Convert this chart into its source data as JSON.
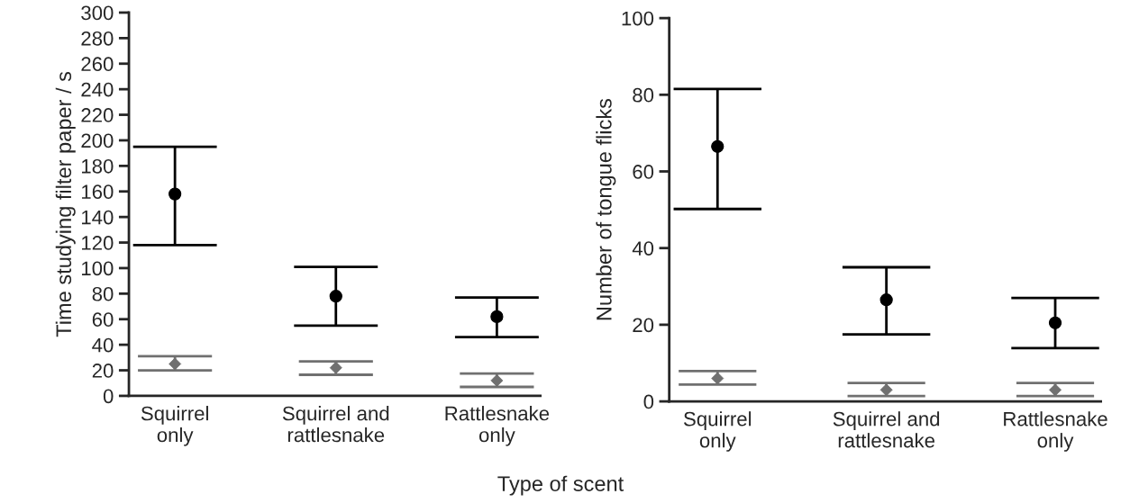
{
  "chart_data": [
    {
      "type": "scatter",
      "xlabel": "Type of scent",
      "ylabel": "Time studying filter paper / s",
      "categories": [
        "Squirrel\nonly",
        "Squirrel and\nrattlesnake",
        "Rattlesnake\nonly"
      ],
      "ylim": [
        0,
        300
      ],
      "yticks": [
        0,
        20,
        40,
        60,
        80,
        100,
        120,
        140,
        160,
        180,
        200,
        220,
        240,
        260,
        280,
        300
      ],
      "grid": false,
      "legend": false,
      "series": [
        {
          "color": "#000000",
          "marker": "circle",
          "values": [
            158,
            78,
            62
          ],
          "errors": [
            [
              118,
              195
            ],
            [
              55,
              101
            ],
            [
              46,
              77
            ]
          ]
        },
        {
          "color": "#707070",
          "marker": "diamond",
          "values": [
            25,
            22,
            12
          ],
          "errors": [
            [
              20,
              31
            ],
            [
              16.5,
              27
            ],
            [
              7,
              17.5
            ]
          ]
        }
      ]
    },
    {
      "type": "scatter",
      "ylabel": "Number of tongue flicks",
      "categories": [
        "Squirrel\nonly",
        "Squirrel and\nrattlesnake",
        "Rattlesnake\nonly"
      ],
      "ylim": [
        0,
        100
      ],
      "yticks": [
        0,
        20,
        40,
        60,
        80,
        100
      ],
      "grid": false,
      "legend": false,
      "series": [
        {
          "color": "#000000",
          "marker": "circle",
          "values": [
            66.5,
            26.5,
            20.5
          ],
          "errors": [
            [
              50.2,
              81.5
            ],
            [
              17.5,
              35
            ],
            [
              13.9,
              27
            ]
          ]
        },
        {
          "color": "#707070",
          "marker": "diamond",
          "values": [
            6,
            3,
            3
          ],
          "errors": [
            [
              4.4,
              7.9
            ],
            [
              1.4,
              4.8
            ],
            [
              1.4,
              4.8
            ]
          ]
        }
      ]
    }
  ]
}
